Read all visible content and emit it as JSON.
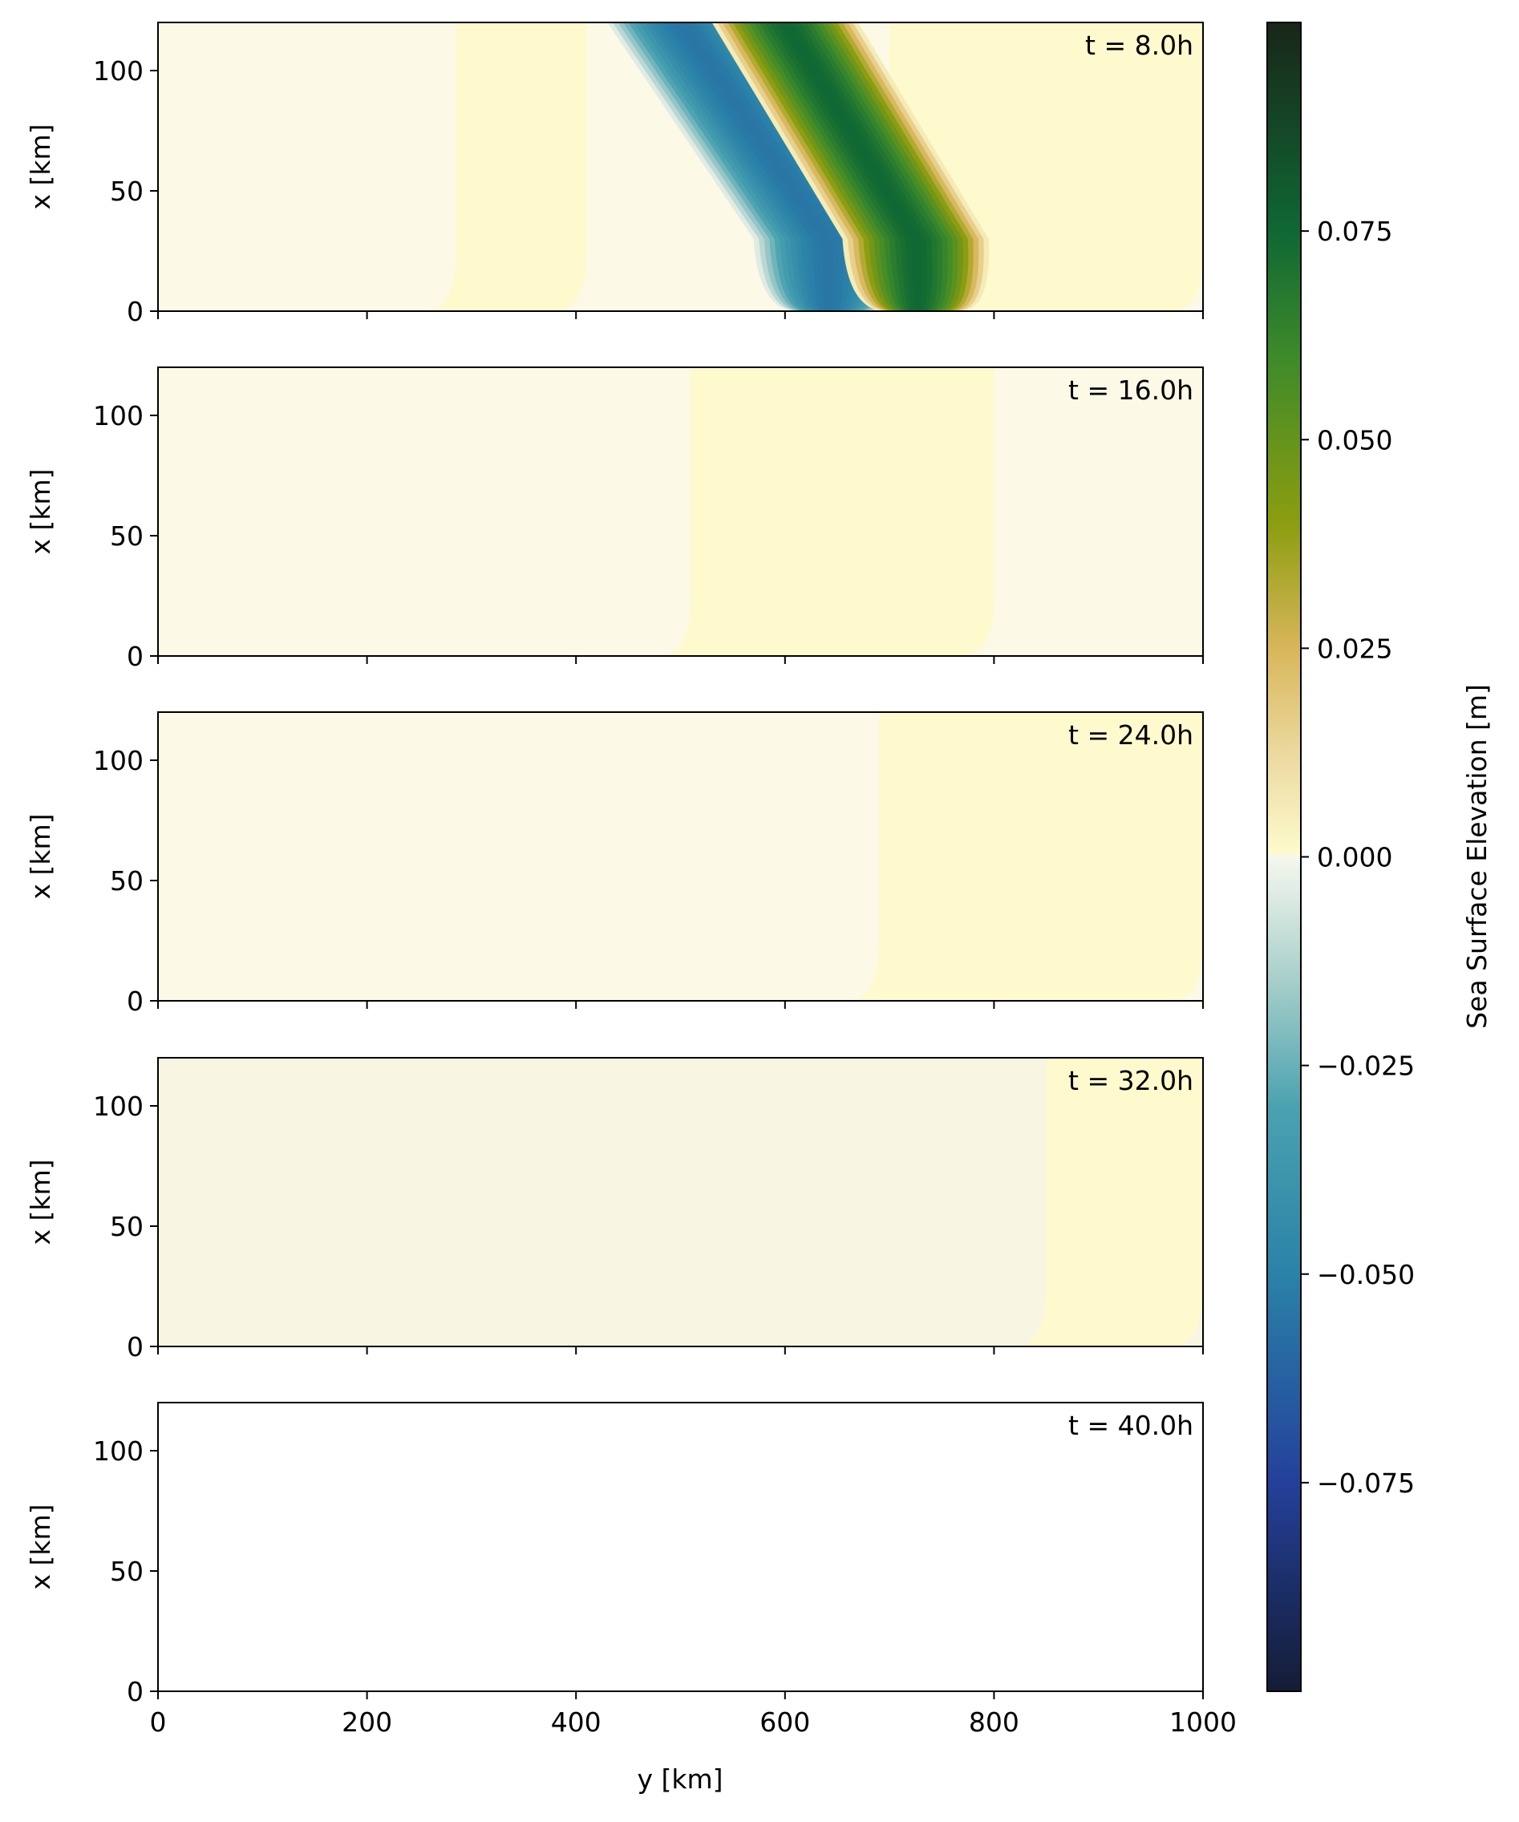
{
  "figure": {
    "colorbar": {
      "label": "Sea Surface Elevation [m]",
      "range": [
        -0.1,
        0.1
      ],
      "ticks": [
        -0.075,
        -0.05,
        -0.025,
        0.0,
        0.025,
        0.05,
        0.075
      ],
      "tick_labels": [
        "−0.075",
        "−0.050",
        "−0.025",
        "0.000",
        "0.025",
        "0.050",
        "0.075"
      ],
      "colormap_stops": [
        {
          "v": -0.1,
          "color": "#141c36"
        },
        {
          "v": -0.075,
          "color": "#24409a"
        },
        {
          "v": -0.05,
          "color": "#2a82a8"
        },
        {
          "v": -0.03,
          "color": "#4aa2b0"
        },
        {
          "v": -0.015,
          "color": "#a6ceca"
        },
        {
          "v": 0.0,
          "color": "#f6f7ee"
        },
        {
          "v": 0.0005,
          "color": "#fdfacc"
        },
        {
          "v": 0.012,
          "color": "#ecdaa0"
        },
        {
          "v": 0.025,
          "color": "#d8b65a"
        },
        {
          "v": 0.04,
          "color": "#8c9d10"
        },
        {
          "v": 0.06,
          "color": "#3d8a2a"
        },
        {
          "v": 0.075,
          "color": "#0f6834"
        },
        {
          "v": 0.1,
          "color": "#192619"
        }
      ]
    }
  },
  "chart_data": {
    "type": "heatmap",
    "xlabel": "y [km]",
    "ylabel": "x [km]",
    "xlim": [
      0,
      1000
    ],
    "ylim": [
      0,
      120
    ],
    "xticks": [
      0,
      200,
      400,
      600,
      800,
      1000
    ],
    "yticks": [
      0,
      50,
      100
    ],
    "panels": [
      {
        "annotation": "t = 8.0h",
        "features": {
          "background": "#fcf9e6",
          "trough": {
            "y_at_top": 500,
            "y_at_base": 640,
            "width": 70,
            "amplitude": -0.055
          },
          "crest": {
            "y_at_top": 600,
            "y_at_base": 725,
            "width": 70,
            "amplitude": 0.075
          },
          "bands": [
            {
              "from": 285,
              "to": 410,
              "color": "#fefacd"
            },
            {
              "from": 700,
              "to": 1000,
              "color": "#fefacd"
            }
          ]
        }
      },
      {
        "annotation": "t = 16.0h",
        "features": {
          "background": "#fcf9e6",
          "bands": [
            {
              "from": 510,
              "to": 800,
              "color": "#fefacd"
            }
          ]
        }
      },
      {
        "annotation": "t = 24.0h",
        "features": {
          "background": "#fcf9e6",
          "bands": [
            {
              "from": 690,
              "to": 1000,
              "color": "#fefacd"
            }
          ]
        }
      },
      {
        "annotation": "t = 32.0h",
        "features": {
          "background": "#f8f5e3",
          "bands": [
            {
              "from": 850,
              "to": 1000,
              "color": "#fefacd"
            }
          ]
        }
      },
      {
        "annotation": "t = 40.0h",
        "features": {
          "background": "#ffffff",
          "bands": []
        }
      }
    ]
  }
}
